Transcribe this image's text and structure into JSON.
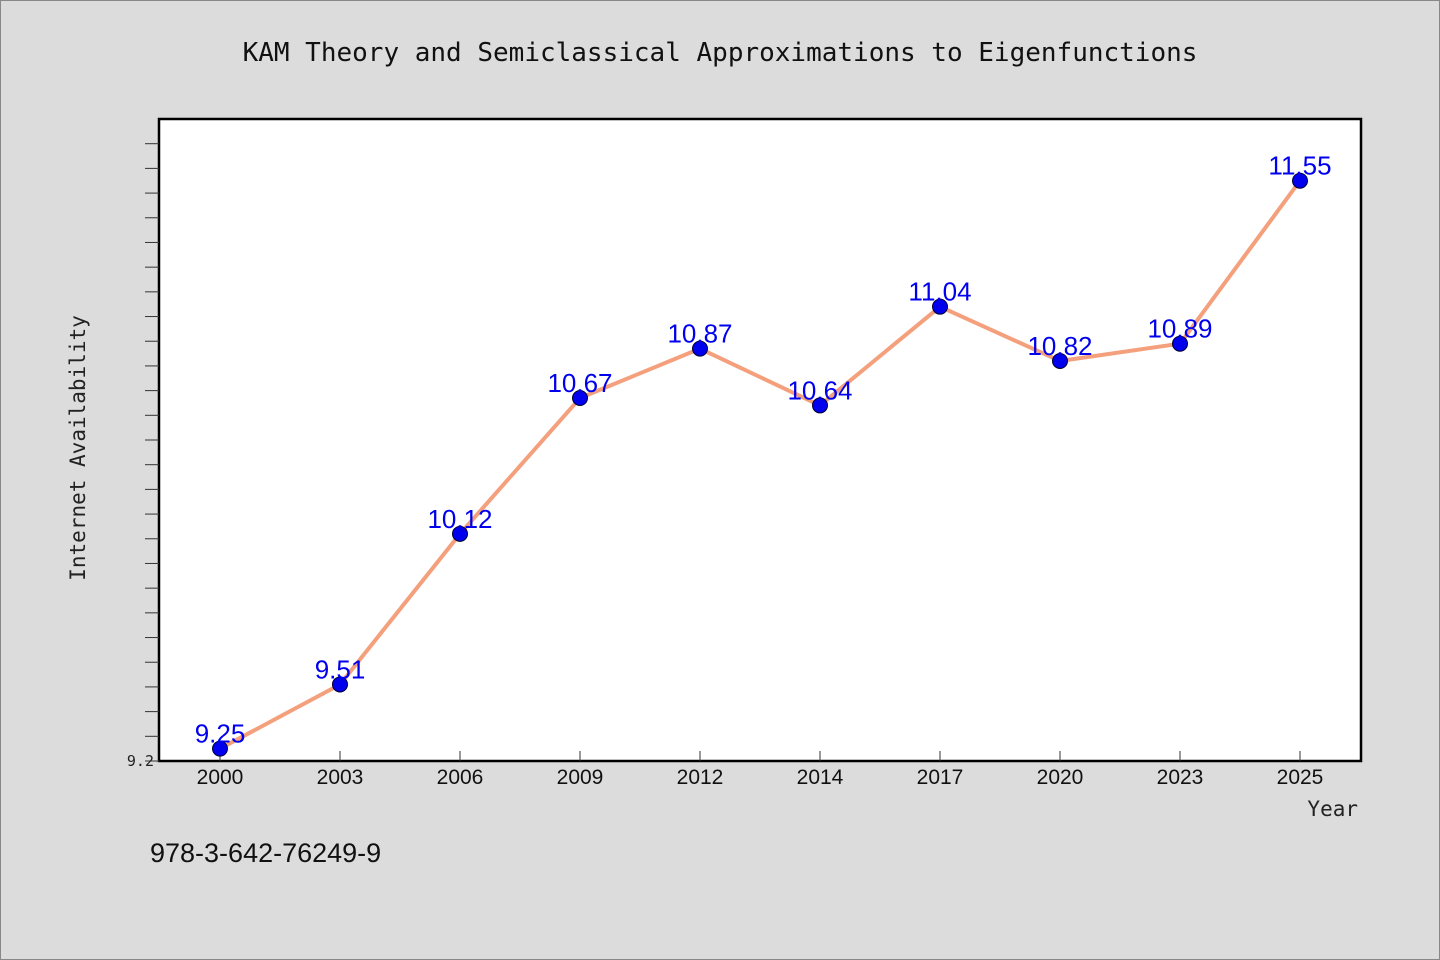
{
  "chart_data": {
    "type": "line",
    "title": "KAM Theory and Semiclassical Approximations to Eigenfunctions",
    "xlabel": "Year",
    "ylabel": "Internet Availability",
    "categories": [
      "2000",
      "2003",
      "2006",
      "2009",
      "2012",
      "2014",
      "2017",
      "2020",
      "2023",
      "2025"
    ],
    "series": [
      {
        "values": [
          9.25,
          9.51,
          10.12,
          10.67,
          10.87,
          10.64,
          11.04,
          10.82,
          10.89,
          11.55
        ],
        "data_labels": [
          "9.25",
          "9.51",
          "10.12",
          "10.67",
          "10.87",
          "10.64",
          "11.04",
          "10.82",
          "10.89",
          "11.55"
        ]
      }
    ],
    "ylim": [
      9.2,
      11.8
    ],
    "y_tick_labels": [
      "9.2"
    ],
    "grid": false,
    "line_color": "#f4a07c",
    "marker_color": "#0000ee",
    "label_color": "#0000ee"
  },
  "footer": {
    "isbn": "978-3-642-76249-9"
  }
}
